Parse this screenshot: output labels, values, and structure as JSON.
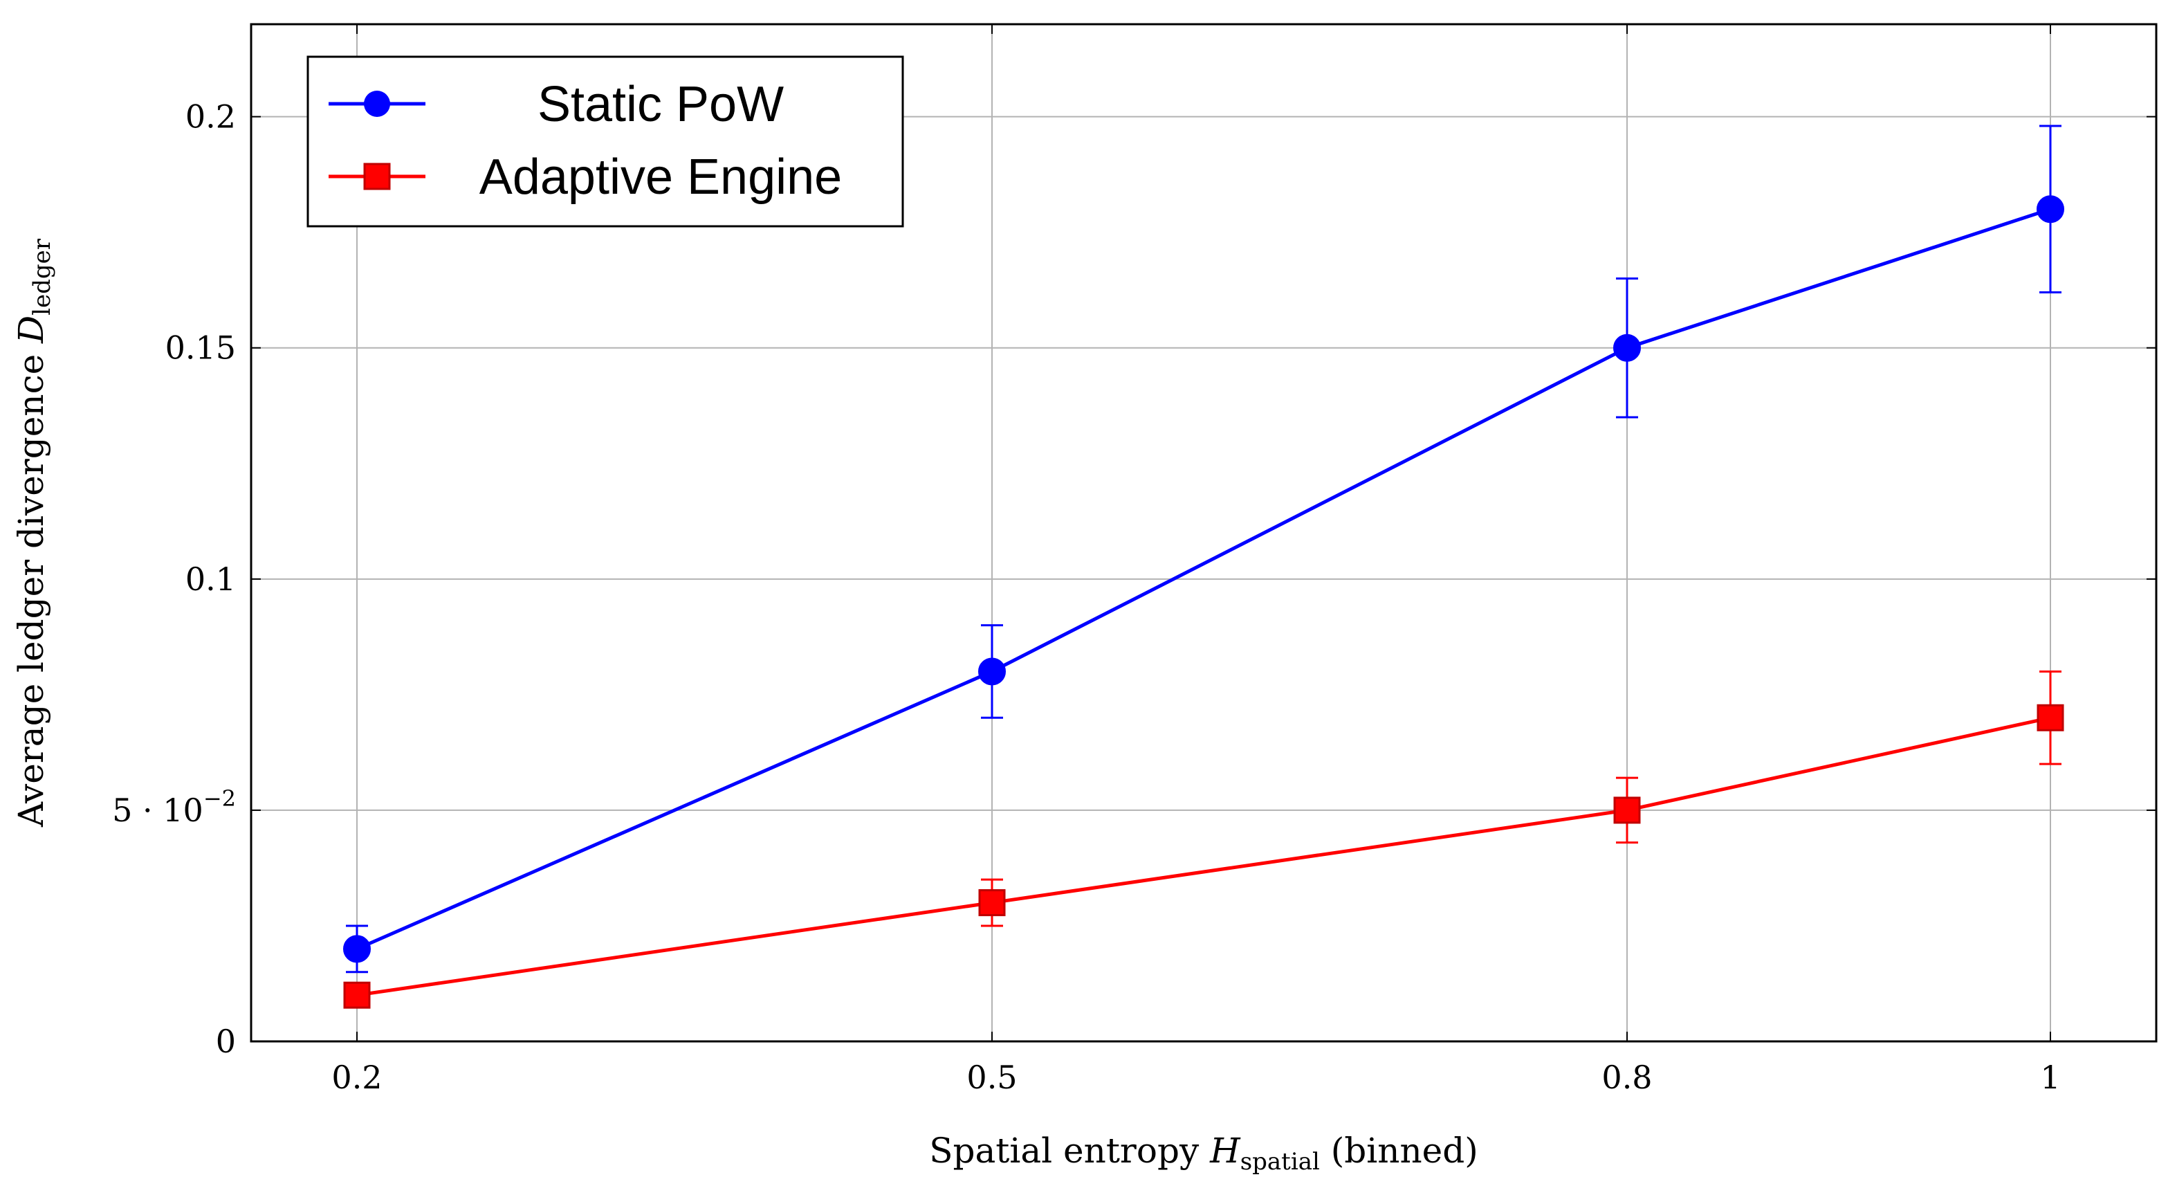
{
  "chart_data": {
    "type": "line",
    "x": [
      0.2,
      0.5,
      0.8,
      1.0
    ],
    "x_tick_labels": [
      "0.2",
      "0.5",
      "0.8",
      "1"
    ],
    "y_ticks": [
      0,
      0.05,
      0.1,
      0.15,
      0.2
    ],
    "y_tick_labels": [
      "0",
      "5 · 10",
      "0.1",
      "0.15",
      "0.2"
    ],
    "y_tick_exponent": "−2",
    "xlim": [
      0.15,
      1.05
    ],
    "ylim": [
      0,
      0.22
    ],
    "xlabel": {
      "main": "Spatial entropy ",
      "var": "H",
      "sub": "spatial",
      "suffix": " (binned)"
    },
    "ylabel": {
      "main": "Average ledger divergence ",
      "var": "D",
      "sub": "ledger"
    },
    "grid": true,
    "legend_position": "top-left",
    "series": [
      {
        "name": "Static PoW",
        "color": "#0000ff",
        "marker": "circle",
        "values": [
          0.02,
          0.08,
          0.15,
          0.18
        ],
        "error_low": [
          0.015,
          0.07,
          0.135,
          0.162
        ],
        "error_high": [
          0.025,
          0.09,
          0.165,
          0.198
        ]
      },
      {
        "name": "Adaptive Engine",
        "color": "#ff0000",
        "marker": "square",
        "values": [
          0.01,
          0.03,
          0.05,
          0.07
        ],
        "error_low": [
          0.008,
          0.025,
          0.043,
          0.06
        ],
        "error_high": [
          0.012,
          0.035,
          0.057,
          0.08
        ]
      }
    ]
  }
}
